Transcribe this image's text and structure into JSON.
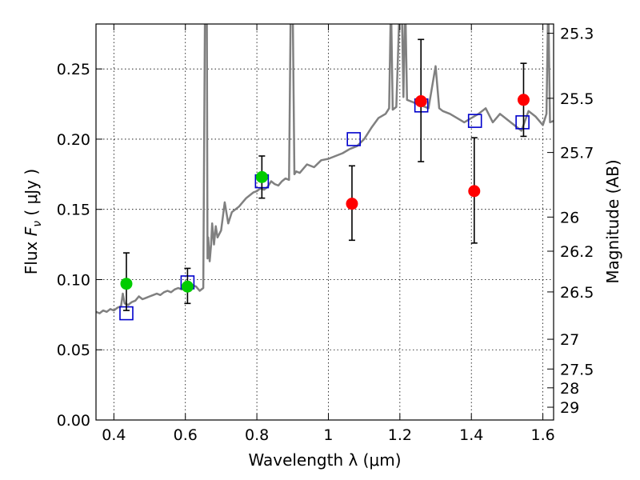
{
  "chart_data": {
    "type": "scatter",
    "xlabel": "Wavelength  λ (μm)",
    "ylabel": "Flux  F_ν  ( μJy )",
    "ylabel_parts": {
      "prefix": "Flux  ",
      "symbol": "F",
      "subscript": "ν",
      "suffix": "  ( μJy )"
    },
    "y2label": "Magnitude (AB)",
    "xlim": [
      0.35,
      1.63
    ],
    "ylim": [
      0.0,
      0.282
    ],
    "grid": true,
    "x_ticks": [
      0.4,
      0.6,
      0.8,
      1.0,
      1.2,
      1.4,
      1.6
    ],
    "x_tick_labels": [
      "0.4",
      "0.6",
      "0.8",
      "1",
      "1.2",
      "1.4",
      "1.6"
    ],
    "y_ticks": [
      0.0,
      0.05,
      0.1,
      0.15,
      0.2,
      0.25
    ],
    "y_tick_labels": [
      "0.00",
      "0.05",
      "0.10",
      "0.15",
      "0.20",
      "0.25"
    ],
    "mag_ticks": [
      {
        "label": "25.3",
        "flux": 0.2754
      },
      {
        "label": "25.5",
        "flux": 0.2291
      },
      {
        "label": "25.7",
        "flux": 0.1905
      },
      {
        "label": "26",
        "flux": 0.1445
      },
      {
        "label": "26.2",
        "flux": 0.1202
      },
      {
        "label": "26.5",
        "flux": 0.0912
      },
      {
        "label": "27",
        "flux": 0.0575
      },
      {
        "label": "27.5",
        "flux": 0.0363
      },
      {
        "label": "28",
        "flux": 0.0229
      },
      {
        "label": "29",
        "flux": 0.0091
      }
    ],
    "series": [
      {
        "name": "model-spectrum",
        "kind": "line",
        "color": "#808080",
        "x": [
          0.35,
          0.36,
          0.37,
          0.38,
          0.39,
          0.4,
          0.41,
          0.42,
          0.425,
          0.43,
          0.44,
          0.45,
          0.46,
          0.47,
          0.48,
          0.49,
          0.5,
          0.51,
          0.52,
          0.53,
          0.54,
          0.55,
          0.56,
          0.57,
          0.58,
          0.59,
          0.6,
          0.61,
          0.62,
          0.63,
          0.64,
          0.65,
          0.655,
          0.66,
          0.662,
          0.664,
          0.668,
          0.672,
          0.675,
          0.68,
          0.685,
          0.69,
          0.7,
          0.71,
          0.72,
          0.73,
          0.74,
          0.75,
          0.76,
          0.77,
          0.78,
          0.79,
          0.8,
          0.81,
          0.82,
          0.83,
          0.84,
          0.85,
          0.86,
          0.87,
          0.88,
          0.89,
          0.895,
          0.9,
          0.905,
          0.91,
          0.92,
          0.94,
          0.96,
          0.98,
          1.0,
          1.02,
          1.04,
          1.06,
          1.08,
          1.1,
          1.12,
          1.14,
          1.16,
          1.17,
          1.175,
          1.18,
          1.19,
          1.2,
          1.205,
          1.21,
          1.215,
          1.22,
          1.24,
          1.26,
          1.28,
          1.3,
          1.31,
          1.32,
          1.34,
          1.36,
          1.38,
          1.4,
          1.42,
          1.44,
          1.46,
          1.48,
          1.5,
          1.52,
          1.54,
          1.56,
          1.58,
          1.6,
          1.61,
          1.615,
          1.62,
          1.63
        ],
        "y": [
          0.077,
          0.076,
          0.078,
          0.077,
          0.079,
          0.078,
          0.08,
          0.081,
          0.09,
          0.083,
          0.082,
          0.084,
          0.085,
          0.088,
          0.086,
          0.087,
          0.088,
          0.089,
          0.09,
          0.089,
          0.091,
          0.092,
          0.091,
          0.093,
          0.094,
          0.093,
          0.095,
          0.094,
          0.096,
          0.095,
          0.092,
          0.094,
          0.3,
          0.3,
          0.115,
          0.13,
          0.113,
          0.125,
          0.14,
          0.125,
          0.138,
          0.13,
          0.135,
          0.155,
          0.14,
          0.148,
          0.15,
          0.152,
          0.155,
          0.158,
          0.16,
          0.162,
          0.163,
          0.165,
          0.164,
          0.166,
          0.17,
          0.168,
          0.167,
          0.17,
          0.172,
          0.171,
          0.3,
          0.3,
          0.175,
          0.177,
          0.176,
          0.182,
          0.18,
          0.185,
          0.186,
          0.188,
          0.19,
          0.193,
          0.195,
          0.2,
          0.208,
          0.215,
          0.218,
          0.222,
          0.3,
          0.221,
          0.223,
          0.3,
          0.3,
          0.23,
          0.3,
          0.228,
          0.226,
          0.224,
          0.222,
          0.252,
          0.222,
          0.22,
          0.218,
          0.215,
          0.212,
          0.215,
          0.218,
          0.222,
          0.212,
          0.218,
          0.214,
          0.21,
          0.206,
          0.22,
          0.216,
          0.21,
          0.218,
          0.3,
          0.212,
          0.213
        ]
      },
      {
        "name": "model-photometry",
        "kind": "open-square",
        "color": "#0000cc",
        "points": [
          {
            "x": 0.435,
            "y": 0.076
          },
          {
            "x": 0.606,
            "y": 0.098
          },
          {
            "x": 0.814,
            "y": 0.17
          },
          {
            "x": 1.071,
            "y": 0.2
          },
          {
            "x": 1.26,
            "y": 0.224
          },
          {
            "x": 1.41,
            "y": 0.213
          },
          {
            "x": 1.543,
            "y": 0.212
          }
        ]
      },
      {
        "name": "observed-optical",
        "kind": "filled-circle",
        "color": "#00cc00",
        "points": [
          {
            "x": 0.435,
            "y": 0.097,
            "yerr": [
              0.019,
              0.022
            ]
          },
          {
            "x": 0.606,
            "y": 0.095,
            "yerr": [
              0.012,
              0.013
            ]
          },
          {
            "x": 0.814,
            "y": 0.173,
            "yerr": [
              0.015,
              0.015
            ]
          }
        ]
      },
      {
        "name": "observed-nir",
        "kind": "filled-circle",
        "color": "#ff0000",
        "points": [
          {
            "x": 1.066,
            "y": 0.154,
            "yerr": [
              0.026,
              0.027
            ]
          },
          {
            "x": 1.259,
            "y": 0.227,
            "yerr": [
              0.043,
              0.044
            ]
          },
          {
            "x": 1.408,
            "y": 0.163,
            "yerr": [
              0.037,
              0.038
            ]
          },
          {
            "x": 1.546,
            "y": 0.228,
            "yerr": [
              0.026,
              0.026
            ]
          }
        ]
      }
    ]
  }
}
